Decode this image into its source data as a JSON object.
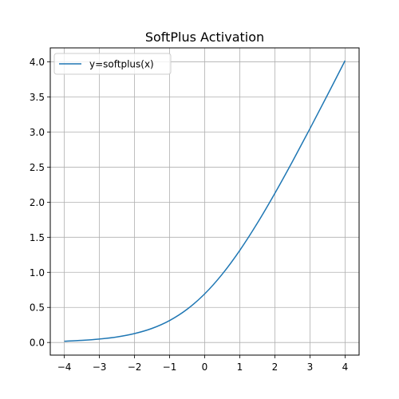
{
  "chart_data": {
    "type": "line",
    "title": "SoftPlus Activation",
    "xlabel": "",
    "ylabel": "",
    "xlim": [
      -4.4,
      4.4
    ],
    "ylim": [
      -0.18,
      4.2
    ],
    "xticks": [
      -4,
      -3,
      -2,
      -1,
      0,
      1,
      2,
      3,
      4
    ],
    "xtick_labels": [
      "−4",
      "−3",
      "−2",
      "−1",
      "0",
      "1",
      "2",
      "3",
      "4"
    ],
    "yticks": [
      0.0,
      0.5,
      1.0,
      1.5,
      2.0,
      2.5,
      3.0,
      3.5,
      4.0
    ],
    "ytick_labels": [
      "0.0",
      "0.5",
      "1.0",
      "1.5",
      "2.0",
      "2.5",
      "3.0",
      "3.5",
      "4.0"
    ],
    "grid": true,
    "legend_position": "top-left",
    "series": [
      {
        "name": "y=softplus(x)",
        "color": "#1f77b4",
        "x": [
          -4,
          -3.5,
          -3,
          -2.5,
          -2,
          -1.5,
          -1,
          -0.5,
          0,
          0.5,
          1,
          1.5,
          2,
          2.5,
          3,
          3.5,
          4
        ],
        "y": [
          0.018,
          0.03,
          0.049,
          0.079,
          0.127,
          0.201,
          0.313,
          0.474,
          0.693,
          0.974,
          1.313,
          1.701,
          2.127,
          2.579,
          3.049,
          3.53,
          4.018
        ]
      }
    ]
  }
}
